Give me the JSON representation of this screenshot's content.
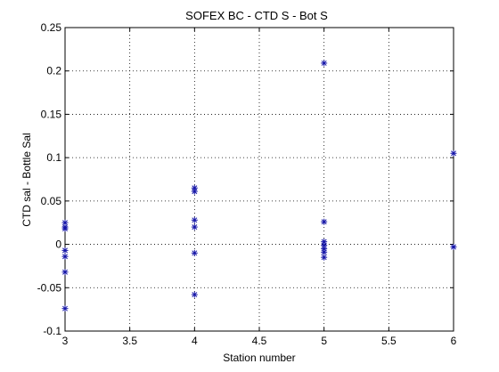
{
  "chart_data": {
    "type": "scatter",
    "title": "SOFEX BC - CTD S - Bot S",
    "xlabel": "Station number",
    "ylabel": "CTD sal - Bottle Sal",
    "xlim": [
      3,
      6
    ],
    "ylim": [
      -0.1,
      0.25
    ],
    "xticks": [
      3,
      3.5,
      4,
      4.5,
      5,
      5.5,
      6
    ],
    "xtick_labels": [
      "3",
      "3.5",
      "4",
      "4.5",
      "5",
      "5.5",
      "6"
    ],
    "yticks": [
      -0.1,
      -0.05,
      0,
      0.05,
      0.1,
      0.15,
      0.2,
      0.25
    ],
    "ytick_labels": [
      "-0.1",
      "-0.05",
      "0",
      "0.05",
      "0.1",
      "0.15",
      "0.2",
      "0.25"
    ],
    "grid": true,
    "marker": "asterisk",
    "marker_color": "#1515a8",
    "points": [
      {
        "x": 3,
        "y": 0.025
      },
      {
        "x": 3,
        "y": 0.02
      },
      {
        "x": 3,
        "y": 0.018
      },
      {
        "x": 3,
        "y": -0.007
      },
      {
        "x": 3,
        "y": -0.014
      },
      {
        "x": 3,
        "y": -0.032
      },
      {
        "x": 3,
        "y": -0.074
      },
      {
        "x": 4,
        "y": 0.065
      },
      {
        "x": 4,
        "y": 0.061
      },
      {
        "x": 4,
        "y": 0.028
      },
      {
        "x": 4,
        "y": 0.02
      },
      {
        "x": 4,
        "y": -0.01
      },
      {
        "x": 4,
        "y": -0.058
      },
      {
        "x": 5,
        "y": 0.209
      },
      {
        "x": 5,
        "y": 0.026
      },
      {
        "x": 5,
        "y": 0.003
      },
      {
        "x": 5,
        "y": -0.001
      },
      {
        "x": 5,
        "y": -0.005
      },
      {
        "x": 5,
        "y": -0.009
      },
      {
        "x": 5,
        "y": -0.015
      },
      {
        "x": 6,
        "y": 0.105
      },
      {
        "x": 6,
        "y": -0.003
      }
    ]
  }
}
